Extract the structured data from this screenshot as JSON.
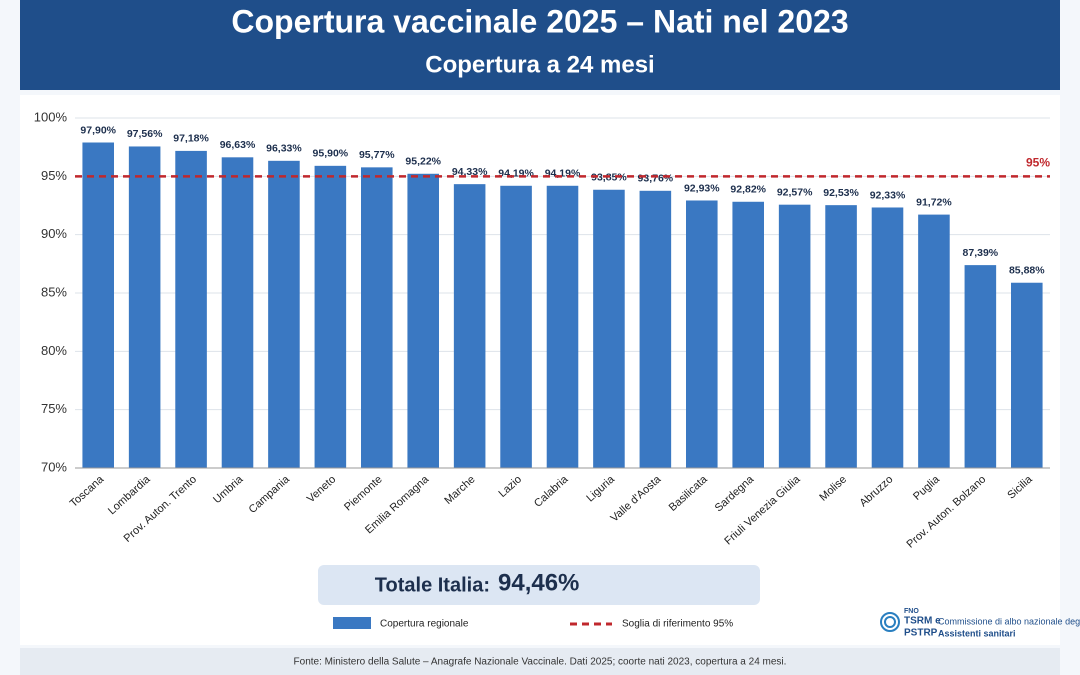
{
  "chart_data": {
    "type": "bar",
    "title": "Copertura vaccinale 2025 – Nati nel 2023",
    "subtitle": "Copertura a 24 mesi",
    "categories": [
      "Toscana",
      "Lombardia",
      "Prov. Auton. Trento",
      "Umbria",
      "Campania",
      "Veneto",
      "Piemonte",
      "Emilia Romagna",
      "Marche",
      "Lazio",
      "Calabria",
      "Liguria",
      "Valle d'Aosta",
      "Basilicata",
      "Sardegna",
      "Friuli Venezia Giulia",
      "Molise",
      "Abruzzo",
      "Puglia",
      "Prov. Auton. Bolzano",
      "Sicilia"
    ],
    "series": [
      {
        "name": "Copertura regionale",
        "color": "#3a78c2",
        "values": [
          97.9,
          97.56,
          97.18,
          96.63,
          96.33,
          95.9,
          95.77,
          95.22,
          94.33,
          94.19,
          94.19,
          93.85,
          93.76,
          92.93,
          92.82,
          92.57,
          92.53,
          92.33,
          91.72,
          87.39,
          85.88
        ],
        "value_labels": [
          "97,90%",
          "97,56%",
          "97,18%",
          "96,63%",
          "96,33%",
          "95,90%",
          "95,77%",
          "95,22%",
          "94,33%",
          "94,19%",
          "94,19%",
          "93,85%",
          "93,76%",
          "92,93%",
          "92,82%",
          "92,57%",
          "92,53%",
          "92,33%",
          "91,72%",
          "87,39%",
          "85,88%"
        ]
      }
    ],
    "ylim": [
      70,
      100
    ],
    "yticks": [
      {
        "value": 70,
        "label": "70%"
      },
      {
        "value": 75,
        "label": "75%"
      },
      {
        "value": 80,
        "label": "80%"
      },
      {
        "value": 85,
        "label": "85%"
      },
      {
        "value": 90,
        "label": "90%"
      },
      {
        "value": 95,
        "label": "95%"
      },
      {
        "value": 100,
        "label": "100%"
      }
    ],
    "grid": true,
    "reference_line": {
      "value": 95,
      "label": "95%",
      "name": "Soglia di riferimento 95%",
      "color": "#c0282d"
    },
    "total": {
      "label": "Totale Italia:",
      "text": "94,46%"
    },
    "source": "Fonte: Ministero della Salute – Anagrafe Nazionale Vaccinale. Dati 2025; coorte nati 2023, copertura a 24 mesi.",
    "logo": {
      "line1": "FNO",
      "line2": "TSRM e",
      "line3": "PSTRP",
      "text1": "Commissione di albo nazionale degli",
      "text2": "Assistenti sanitari"
    }
  }
}
